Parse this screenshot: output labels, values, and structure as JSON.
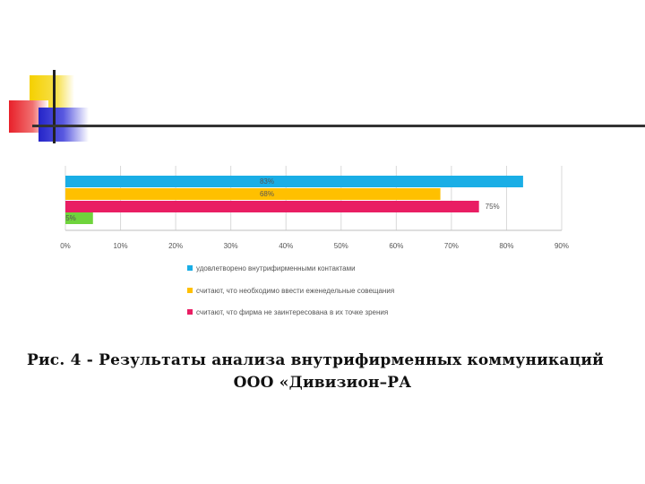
{
  "colors": {
    "yellow": "#f5d000",
    "red": "#e8202a",
    "blue": "#2424c8",
    "cyan": "#1aaee6",
    "orange": "#ffc000",
    "magenta": "#e91e63",
    "green": "#6fd43c"
  },
  "chart_data": {
    "type": "bar",
    "orientation": "horizontal",
    "series": [
      {
        "name": "удовлетворено внутрифирменными контактами",
        "value": 83,
        "label": "83%",
        "color": "#1aaee6"
      },
      {
        "name": "считают, что необходимо ввести еженедельные совещания",
        "value": 68,
        "label": "68%",
        "color": "#ffc000"
      },
      {
        "name": "считают, что фирма не заинтересована в их точке зрения",
        "value": 75,
        "label": "75%",
        "color": "#e91e63"
      },
      {
        "name": "",
        "value": 5,
        "label": "5%",
        "color": "#6fd43c"
      }
    ],
    "xticks": [
      "0%",
      "10%",
      "20%",
      "30%",
      "40%",
      "50%",
      "60%",
      "70%",
      "80%",
      "90%"
    ],
    "xlim": [
      0,
      90
    ],
    "grid": "vertical",
    "legend_position": "bottom"
  },
  "caption": {
    "line1": "Рис. 4 - Результаты анализа внутрифирменных коммуникаций",
    "line2": "ООО «Дивизион–РА"
  }
}
